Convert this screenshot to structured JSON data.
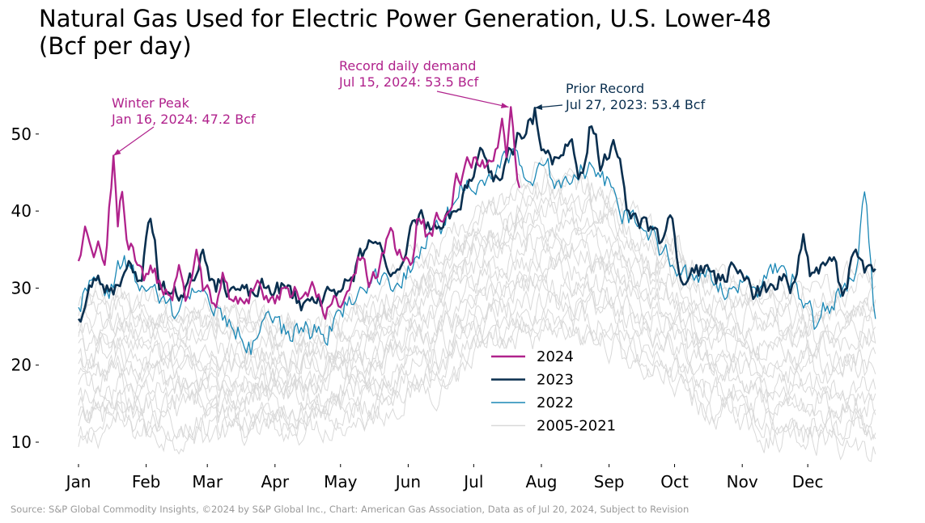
{
  "chart_data": {
    "type": "line",
    "title_lines": [
      "Natural Gas Used for Electric Power Generation, U.S. Lower-48",
      "(Bcf per day)"
    ],
    "ylim": [
      7,
      57
    ],
    "yticks": [
      10,
      20,
      30,
      40,
      50
    ],
    "ytick_labels": [
      "10",
      "20",
      "30",
      "40",
      "50"
    ],
    "x_domain_days": [
      0,
      365
    ],
    "months": [
      {
        "label": "Jan",
        "day": 0
      },
      {
        "label": "Feb",
        "day": 31
      },
      {
        "label": "Mar",
        "day": 59
      },
      {
        "label": "Apr",
        "day": 90
      },
      {
        "label": "May",
        "day": 120
      },
      {
        "label": "Jun",
        "day": 151
      },
      {
        "label": "Jul",
        "day": 181
      },
      {
        "label": "Aug",
        "day": 212
      },
      {
        "label": "Sep",
        "day": 243
      },
      {
        "label": "Oct",
        "day": 273
      },
      {
        "label": "Nov",
        "day": 304
      },
      {
        "label": "Dec",
        "day": 334
      }
    ],
    "series": [
      {
        "name": "2005-2021",
        "color": "#d9d9d9",
        "width": 1,
        "is_band": true,
        "band_count": 17,
        "note": "historical range, one faint line per year",
        "low_anchors": [
          [
            0,
            9
          ],
          [
            15,
            12
          ],
          [
            40,
            11
          ],
          [
            70,
            11
          ],
          [
            100,
            12
          ],
          [
            130,
            13
          ],
          [
            160,
            17
          ],
          [
            190,
            22
          ],
          [
            215,
            24
          ],
          [
            240,
            23
          ],
          [
            265,
            19
          ],
          [
            290,
            14
          ],
          [
            320,
            11
          ],
          [
            345,
            10
          ],
          [
            365,
            9
          ]
        ],
        "high_anchors": [
          [
            0,
            29
          ],
          [
            15,
            29
          ],
          [
            40,
            28
          ],
          [
            70,
            27
          ],
          [
            100,
            25
          ],
          [
            130,
            28
          ],
          [
            160,
            34
          ],
          [
            190,
            41
          ],
          [
            215,
            45
          ],
          [
            240,
            43
          ],
          [
            265,
            37
          ],
          [
            290,
            32
          ],
          [
            320,
            30
          ],
          [
            345,
            30
          ],
          [
            365,
            33
          ]
        ]
      },
      {
        "name": "2022",
        "color": "#1a87b5",
        "width": 1.3,
        "anchors": [
          [
            0,
            27.5
          ],
          [
            5,
            31
          ],
          [
            12,
            29
          ],
          [
            20,
            33
          ],
          [
            30,
            30
          ],
          [
            40,
            28
          ],
          [
            45,
            26.5
          ],
          [
            52,
            30
          ],
          [
            60,
            28
          ],
          [
            70,
            25
          ],
          [
            78,
            23
          ],
          [
            85,
            26
          ],
          [
            95,
            24
          ],
          [
            105,
            25
          ],
          [
            112,
            24
          ],
          [
            120,
            27
          ],
          [
            130,
            30
          ],
          [
            140,
            32
          ],
          [
            148,
            30
          ],
          [
            152,
            32
          ],
          [
            160,
            37
          ],
          [
            165,
            38
          ],
          [
            172,
            41
          ],
          [
            178,
            44
          ],
          [
            185,
            44
          ],
          [
            192,
            46
          ],
          [
            200,
            48
          ],
          [
            205,
            44
          ],
          [
            212,
            46
          ],
          [
            220,
            44
          ],
          [
            230,
            46
          ],
          [
            238,
            45
          ],
          [
            245,
            43
          ],
          [
            250,
            40
          ],
          [
            256,
            38
          ],
          [
            262,
            37
          ],
          [
            268,
            35
          ],
          [
            275,
            32
          ],
          [
            282,
            31
          ],
          [
            290,
            31
          ],
          [
            298,
            30
          ],
          [
            305,
            31
          ],
          [
            312,
            30
          ],
          [
            320,
            32
          ],
          [
            328,
            31
          ],
          [
            333,
            28
          ],
          [
            338,
            25
          ],
          [
            342,
            27
          ],
          [
            350,
            30
          ],
          [
            356,
            32
          ],
          [
            360,
            42.5
          ],
          [
            363,
            33
          ],
          [
            365,
            26
          ]
        ]
      },
      {
        "name": "2023",
        "color": "#0a2f4f",
        "width": 2.6,
        "anchors": [
          [
            0,
            26
          ],
          [
            8,
            31
          ],
          [
            15,
            30
          ],
          [
            22,
            32.5
          ],
          [
            28,
            31
          ],
          [
            33,
            39
          ],
          [
            38,
            30
          ],
          [
            45,
            29
          ],
          [
            52,
            31
          ],
          [
            57,
            35
          ],
          [
            62,
            31
          ],
          [
            70,
            30
          ],
          [
            78,
            29
          ],
          [
            86,
            30
          ],
          [
            95,
            30
          ],
          [
            103,
            28
          ],
          [
            110,
            29
          ],
          [
            118,
            29
          ],
          [
            124,
            31
          ],
          [
            130,
            34
          ],
          [
            136,
            36
          ],
          [
            142,
            32
          ],
          [
            148,
            33
          ],
          [
            152,
            38
          ],
          [
            158,
            39
          ],
          [
            165,
            38
          ],
          [
            172,
            40
          ],
          [
            178,
            43
          ],
          [
            183,
            47
          ],
          [
            188,
            45
          ],
          [
            193,
            44
          ],
          [
            198,
            48
          ],
          [
            202,
            50
          ],
          [
            207,
            52
          ],
          [
            209,
            53.4
          ],
          [
            213,
            48
          ],
          [
            218,
            47
          ],
          [
            225,
            49
          ],
          [
            230,
            45
          ],
          [
            235,
            51
          ],
          [
            240,
            46
          ],
          [
            246,
            48
          ],
          [
            252,
            40
          ],
          [
            258,
            39
          ],
          [
            262,
            38
          ],
          [
            267,
            36
          ],
          [
            272,
            39
          ],
          [
            276,
            31
          ],
          [
            282,
            32
          ],
          [
            288,
            33
          ],
          [
            294,
            31
          ],
          [
            300,
            33
          ],
          [
            305,
            31
          ],
          [
            310,
            29
          ],
          [
            316,
            30
          ],
          [
            322,
            31
          ],
          [
            327,
            30.5
          ],
          [
            332,
            37
          ],
          [
            336,
            32
          ],
          [
            340,
            33
          ],
          [
            346,
            34
          ],
          [
            350,
            29
          ],
          [
            356,
            35
          ],
          [
            360,
            32
          ],
          [
            363,
            33
          ],
          [
            365,
            32.5
          ]
        ]
      },
      {
        "name": "2024",
        "color": "#b0228c",
        "width": 2.3,
        "anchors": [
          [
            0,
            33.5
          ],
          [
            3,
            38
          ],
          [
            7,
            34
          ],
          [
            10,
            35
          ],
          [
            12,
            33
          ],
          [
            15,
            43
          ],
          [
            16,
            47.2
          ],
          [
            18,
            38
          ],
          [
            20,
            42.5
          ],
          [
            23,
            35
          ],
          [
            27,
            33
          ],
          [
            30,
            31
          ],
          [
            34,
            32
          ],
          [
            38,
            30
          ],
          [
            42,
            29
          ],
          [
            46,
            33
          ],
          [
            50,
            29
          ],
          [
            54,
            35
          ],
          [
            58,
            30
          ],
          [
            62,
            28
          ],
          [
            66,
            32
          ],
          [
            70,
            28.5
          ],
          [
            76,
            28
          ],
          [
            82,
            31
          ],
          [
            86,
            29
          ],
          [
            90,
            28
          ],
          [
            94,
            30
          ],
          [
            98,
            29
          ],
          [
            103,
            29
          ],
          [
            108,
            30
          ],
          [
            113,
            26
          ],
          [
            117,
            29
          ],
          [
            121,
            28
          ],
          [
            125,
            31
          ],
          [
            130,
            34
          ],
          [
            134,
            31
          ],
          [
            138,
            33
          ],
          [
            142,
            37
          ],
          [
            147,
            35
          ],
          [
            152,
            33
          ],
          [
            156,
            39
          ],
          [
            160,
            37
          ],
          [
            165,
            39
          ],
          [
            170,
            40
          ],
          [
            174,
            44
          ],
          [
            178,
            47
          ],
          [
            183,
            46
          ],
          [
            187,
            46
          ],
          [
            191,
            48
          ],
          [
            194,
            52
          ],
          [
            196,
            47
          ],
          [
            198,
            53.5
          ],
          [
            200,
            47
          ],
          [
            202,
            43
          ]
        ]
      }
    ],
    "legend": {
      "placement": "lower-center",
      "entries": [
        {
          "label": "2024",
          "color": "#b0228c",
          "width": 2.5
        },
        {
          "label": "2023",
          "color": "#0a2f4f",
          "width": 2.5
        },
        {
          "label": "2022",
          "color": "#1a87b5",
          "width": 1.4
        },
        {
          "label": "2005-2021",
          "color": "#d9d9d9",
          "width": 1.4
        }
      ]
    },
    "annotations": [
      {
        "lines": [
          "Winter Peak",
          "Jan 16, 2024: 47.2 Bcf"
        ],
        "color": "#b0228c",
        "point_day": 16,
        "point_value": 47.2
      },
      {
        "lines": [
          "Record daily demand",
          "Jul 15, 2024: 53.5 Bcf"
        ],
        "color": "#b0228c",
        "point_day": 197,
        "point_value": 53.5
      },
      {
        "lines": [
          "Prior Record",
          "Jul 27, 2023: 53.4 Bcf"
        ],
        "color": "#0a2f4f",
        "point_day": 209,
        "point_value": 53.4
      }
    ],
    "source": "Source: S&P Global Commodity Insights, ©2024 by S&P Global Inc., Chart: American Gas Association, Data as of Jul 20, 2024, Subject to Revision"
  }
}
